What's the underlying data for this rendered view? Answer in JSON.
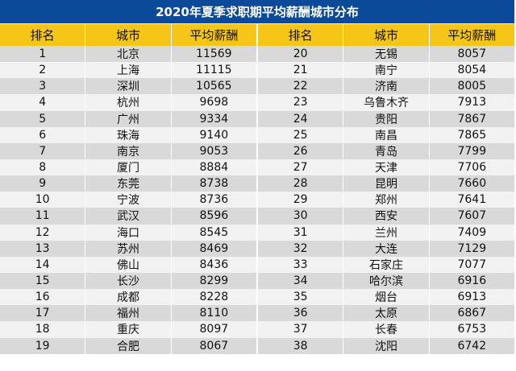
{
  "title": "2020年夏季求职期平均薪酬城市分布",
  "headers": [
    "排名",
    "城市",
    "平均薪酬",
    "排名",
    "城市",
    "平均薪酬"
  ],
  "rows": [
    [
      "1",
      "北京",
      "11569",
      "20",
      "无锡",
      "8057"
    ],
    [
      "2",
      "上海",
      "11115",
      "21",
      "南宁",
      "8054"
    ],
    [
      "3",
      "深圳",
      "10565",
      "22",
      "济南",
      "8005"
    ],
    [
      "4",
      "杭州",
      "9698",
      "23",
      "乌鲁木齐",
      "7913"
    ],
    [
      "5",
      "广州",
      "9334",
      "24",
      "贵阳",
      "7867"
    ],
    [
      "6",
      "珠海",
      "9140",
      "25",
      "南昌",
      "7865"
    ],
    [
      "7",
      "南京",
      "9053",
      "26",
      "青岛",
      "7799"
    ],
    [
      "8",
      "厦门",
      "8884",
      "27",
      "天津",
      "7706"
    ],
    [
      "9",
      "东莞",
      "8738",
      "28",
      "昆明",
      "7660"
    ],
    [
      "10",
      "宁波",
      "8736",
      "29",
      "郑州",
      "7641"
    ],
    [
      "11",
      "武汉",
      "8596",
      "30",
      "西安",
      "7607"
    ],
    [
      "12",
      "海口",
      "8545",
      "31",
      "兰州",
      "7409"
    ],
    [
      "13",
      "苏州",
      "8469",
      "32",
      "大连",
      "7129"
    ],
    [
      "14",
      "佛山",
      "8436",
      "33",
      "石家庄",
      "7077"
    ],
    [
      "15",
      "长沙",
      "8299",
      "34",
      "哈尔滨",
      "6916"
    ],
    [
      "16",
      "成都",
      "8228",
      "35",
      "烟台",
      "6913"
    ],
    [
      "17",
      "福州",
      "8110",
      "36",
      "太原",
      "6867"
    ],
    [
      "18",
      "重庆",
      "8097",
      "37",
      "长春",
      "6753"
    ],
    [
      "19",
      "合肥",
      "8067",
      "38",
      "沈阳",
      "6742"
    ]
  ],
  "colors": {
    "title_bg": "#0b4a98",
    "header_bg": "#f5c518",
    "row_odd": "#d9d9d9",
    "row_even": "#f2f2f2"
  }
}
